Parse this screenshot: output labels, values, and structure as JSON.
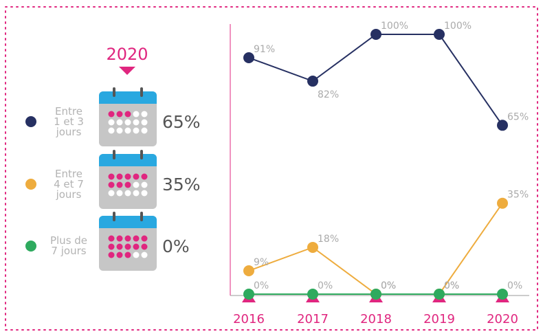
{
  "chart_data": {
    "type": "line",
    "categories": [
      "2016",
      "2017",
      "2018",
      "2019",
      "2020"
    ],
    "ylim": [
      0,
      100
    ],
    "series": [
      {
        "name": "Entre 1 et 3 jours",
        "color": "#263062",
        "values": [
          91,
          82,
          100,
          100,
          65
        ],
        "value_labels": [
          "91%",
          "82%",
          "100%",
          "100%",
          "65%"
        ]
      },
      {
        "name": "Entre 4 et 7 jours",
        "color": "#eeac3e",
        "values": [
          9,
          18,
          0,
          0,
          35
        ],
        "value_labels": [
          "9%",
          "18%",
          "0%",
          "0%",
          "35%"
        ]
      },
      {
        "name": "Plus de 7 jours",
        "color": "#2eaa5e",
        "values": [
          0,
          0,
          0,
          0,
          0
        ],
        "value_labels": [
          "0%",
          "0%",
          "0%",
          "0%",
          "0%"
        ]
      }
    ]
  }
}
